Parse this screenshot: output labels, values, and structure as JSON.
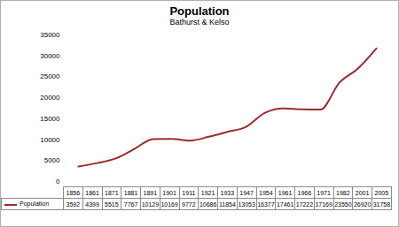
{
  "chart_data": {
    "type": "line",
    "title": "Population",
    "subtitle": "Bathurst & Kelso",
    "categories": [
      "1856",
      "1861",
      "1871",
      "1881",
      "1891",
      "1901",
      "1911",
      "1921",
      "1933",
      "1947",
      "1954",
      "1961",
      "1966",
      "1971",
      "1982",
      "2001",
      "2005"
    ],
    "series": [
      {
        "name": "Population",
        "color": "#9e2a2f",
        "line_style": "smooth",
        "values": [
          3592,
          4399,
          5515,
          7767,
          10129,
          10169,
          9772,
          10686,
          11854,
          13053,
          16377,
          17461,
          17222,
          17169,
          23550,
          26920,
          31758
        ]
      }
    ],
    "ylim": [
      0,
      35000
    ],
    "yticks": [
      0,
      5000,
      10000,
      15000,
      20000,
      25000,
      30000,
      35000
    ],
    "grid": false,
    "legend": "bottom",
    "data_labels": true
  }
}
